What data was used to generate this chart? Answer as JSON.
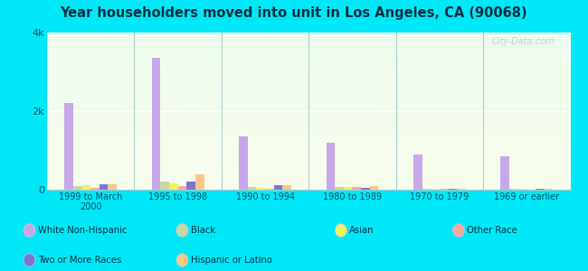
{
  "title": "Year householders moved into unit in Los Angeles, CA (90068)",
  "categories": [
    "1999 to March\n2000",
    "1995 to 1998",
    "1990 to 1994",
    "1980 to 1989",
    "1970 to 1979",
    "1969 or earlier"
  ],
  "series": {
    "White Non-Hispanic": [
      2200,
      3350,
      1350,
      1200,
      900,
      850
    ],
    "Black": [
      100,
      200,
      80,
      70,
      30,
      30
    ],
    "Asian": [
      120,
      150,
      50,
      60,
      20,
      20
    ],
    "Other Race": [
      50,
      100,
      30,
      80,
      20,
      10
    ],
    "Two or More Races": [
      140,
      200,
      120,
      50,
      20,
      20
    ],
    "Hispanic or Latino": [
      130,
      380,
      120,
      100,
      30,
      30
    ]
  },
  "colors": {
    "White Non-Hispanic": "#c8a8e8",
    "Black": "#c8d8a0",
    "Asian": "#f0f060",
    "Other Race": "#f8a8a0",
    "Two or More Races": "#7878d0",
    "Hispanic or Latino": "#f8c888"
  },
  "background_outer": "#00e8f8",
  "ylim": [
    0,
    4000
  ],
  "ytick_labels": [
    "0",
    "2k",
    "4k"
  ],
  "ytick_vals": [
    0,
    2000,
    4000
  ]
}
